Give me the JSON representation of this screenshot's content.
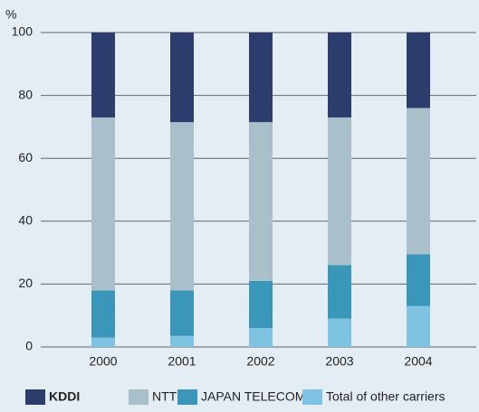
{
  "chart_data": {
    "type": "stacked_bar",
    "y_label": "%",
    "categories": [
      "2000",
      "2001",
      "2002",
      "2003",
      "2004"
    ],
    "series": [
      {
        "name": "KDDI",
        "color": "#2c3d6d",
        "values": [
          27,
          28.5,
          28.5,
          27,
          24
        ]
      },
      {
        "name": "NTT",
        "color": "#a9bfca",
        "values": [
          55,
          53.5,
          50.5,
          47,
          46.5
        ]
      },
      {
        "name": "JAPAN TELECOM",
        "color": "#3b97ba",
        "values": [
          15,
          14.5,
          15,
          17,
          16.5
        ]
      },
      {
        "name": "Total of other carriers",
        "color": "#7ec4e2",
        "values": [
          3,
          3.5,
          6,
          9,
          13
        ]
      }
    ],
    "ylim": [
      0,
      100
    ],
    "yticks": [
      0,
      20,
      40,
      60,
      80,
      100
    ],
    "grid": true,
    "legend": "bottom"
  }
}
